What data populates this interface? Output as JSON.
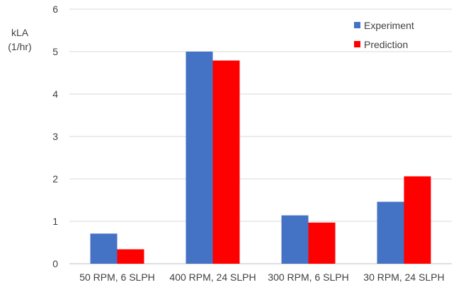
{
  "chart_data": {
    "type": "bar",
    "categories": [
      "50 RPM, 6 SLPH",
      "400 RPM, 24 SLPH",
      "300 RPM, 6 SLPH",
      "30 RPM, 24 SLPH"
    ],
    "series": [
      {
        "name": "Experiment",
        "color": "#4472C4",
        "values": [
          0.71,
          5.0,
          1.14,
          1.46
        ]
      },
      {
        "name": "Prediction",
        "color": "#FF0000",
        "values": [
          0.34,
          4.79,
          0.97,
          2.06
        ]
      }
    ],
    "title": "",
    "ylabel_line1": "kLA",
    "ylabel_line2": "(1/hr)",
    "xlabel": "",
    "ylim": [
      0,
      6
    ],
    "yticks": [
      "0",
      "1",
      "2",
      "3",
      "4",
      "5",
      "6"
    ],
    "grid": true,
    "legend_position": "top-right",
    "colors": {
      "gridline": "#D9D9D9",
      "axis": "#BFBFBF",
      "text": "#404040"
    }
  }
}
